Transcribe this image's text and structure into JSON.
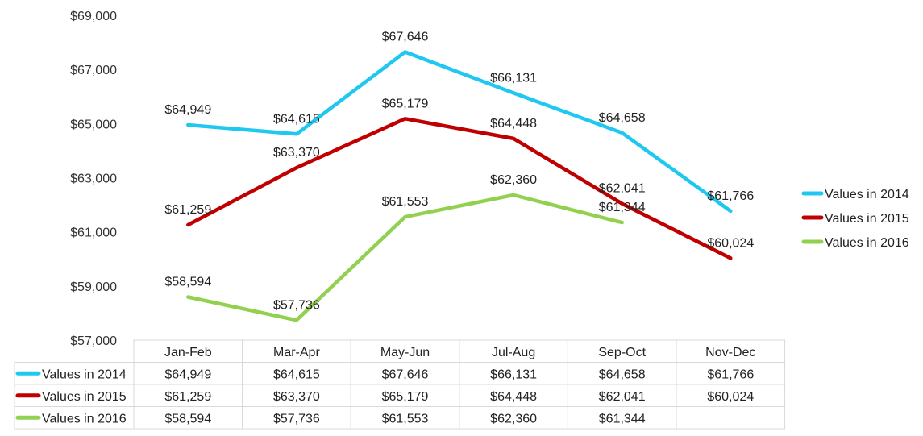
{
  "chart_data": {
    "type": "line",
    "categories": [
      "Jan-Feb",
      "Mar-Apr",
      "May-Jun",
      "Jul-Aug",
      "Sep-Oct",
      "Nov-Dec"
    ],
    "series": [
      {
        "name": "Values in 2014",
        "color": "#1EC8F0",
        "values": [
          64949,
          64615,
          67646,
          66131,
          64658,
          61766
        ],
        "labels": [
          "$64,949",
          "$64,615",
          "$67,646",
          "$66,131",
          "$64,658",
          "$61,766"
        ]
      },
      {
        "name": "Values in 2015",
        "color": "#C00000",
        "values": [
          61259,
          63370,
          65179,
          64448,
          62041,
          60024
        ],
        "labels": [
          "$61,259",
          "$63,370",
          "$65,179",
          "$64,448",
          "$62,041",
          "$60,024"
        ]
      },
      {
        "name": "Values in 2016",
        "color": "#92D050",
        "values": [
          58594,
          57736,
          61553,
          62360,
          61344,
          null
        ],
        "labels": [
          "$58,594",
          "$57,736",
          "$61,553",
          "$62,360",
          "$61,344",
          ""
        ]
      }
    ],
    "ylim": [
      57000,
      69000
    ],
    "yticks": [
      57000,
      59000,
      61000,
      63000,
      65000,
      67000,
      69000
    ],
    "ytick_labels": [
      "$57,000",
      "$59,000",
      "$61,000",
      "$63,000",
      "$65,000",
      "$67,000",
      "$69,000"
    ],
    "legend_position": "right",
    "data_table": true,
    "grid": false
  }
}
